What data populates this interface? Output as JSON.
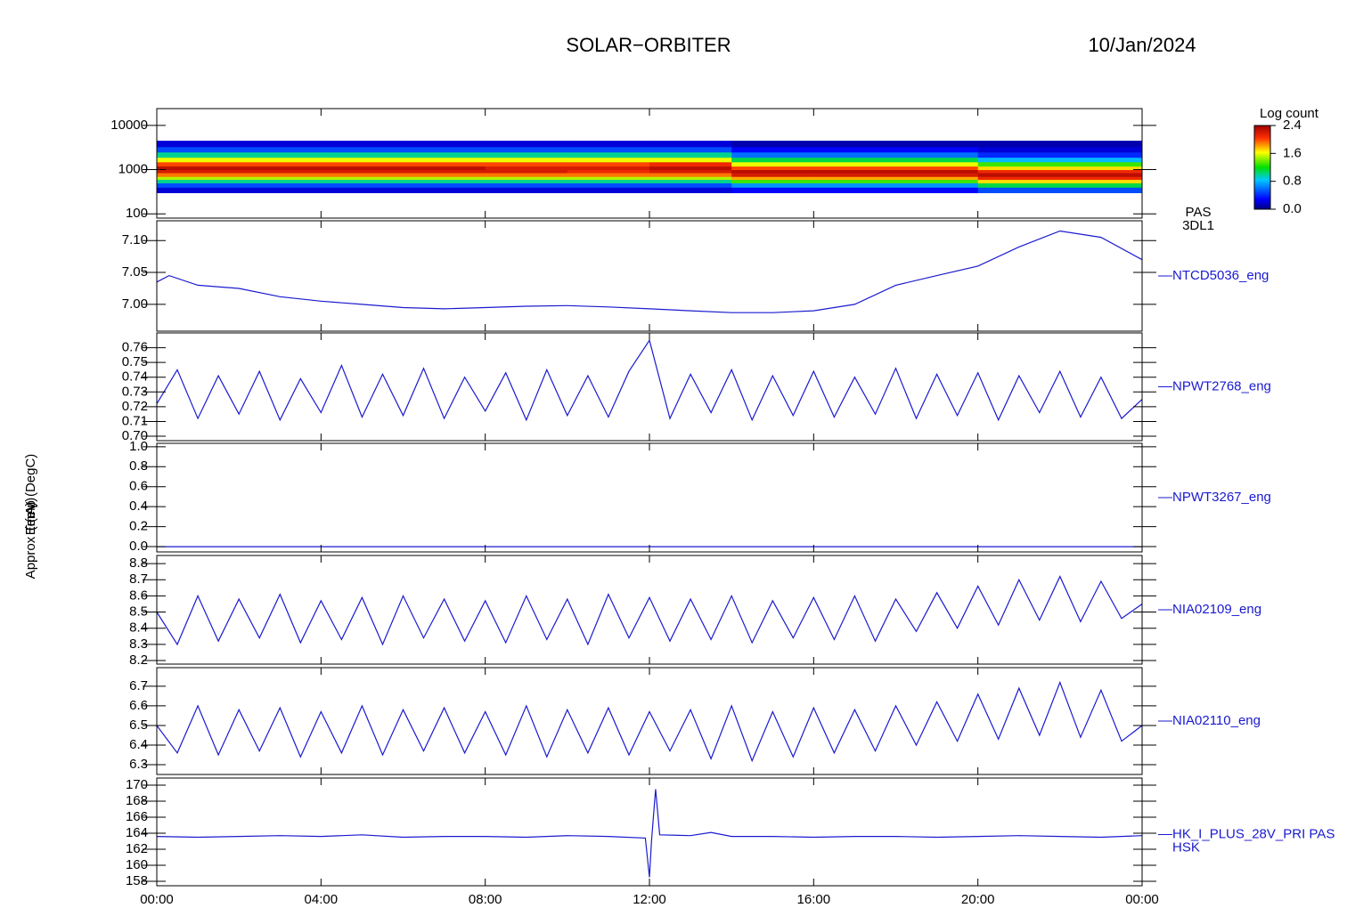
{
  "header": {
    "title": "SOLAR−ORBITER",
    "date": "10/Jan/2024"
  },
  "chart_data": [
    {
      "type": "heatmap",
      "ylabel": "E (eV)",
      "log": true,
      "x": [
        0,
        2,
        4,
        6,
        8,
        10,
        12,
        14,
        16,
        18,
        20,
        22,
        24
      ],
      "y": [
        300,
        400,
        500,
        600,
        700,
        850,
        1000,
        1200,
        1500,
        1900,
        2500,
        3300,
        4500
      ],
      "z": [
        [
          0.2,
          0.5,
          1.0,
          1.5,
          1.9,
          2.2,
          2.3,
          2.0,
          1.6,
          1.0,
          0.5,
          0.2
        ],
        [
          0.2,
          0.5,
          1.0,
          1.5,
          1.9,
          2.2,
          2.3,
          2.0,
          1.6,
          1.0,
          0.5,
          0.2
        ],
        [
          0.2,
          0.5,
          1.0,
          1.5,
          1.9,
          2.2,
          2.3,
          2.0,
          1.6,
          1.0,
          0.5,
          0.2
        ],
        [
          0.2,
          0.5,
          1.0,
          1.5,
          1.9,
          2.2,
          2.3,
          2.0,
          1.6,
          1.0,
          0.5,
          0.2
        ],
        [
          0.2,
          0.5,
          1.0,
          1.5,
          1.9,
          2.2,
          2.2,
          2.0,
          1.6,
          1.0,
          0.5,
          0.2
        ],
        [
          0.2,
          0.5,
          1.0,
          1.5,
          1.9,
          2.1,
          2.2,
          2.0,
          1.6,
          1.0,
          0.5,
          0.2
        ],
        [
          0.2,
          0.5,
          1.0,
          1.5,
          1.9,
          2.2,
          2.3,
          2.1,
          1.6,
          1.0,
          0.5,
          0.2
        ],
        [
          0.3,
          0.7,
          1.3,
          1.8,
          2.2,
          2.3,
          2.0,
          1.6,
          1.1,
          0.6,
          0.3,
          0.1
        ],
        [
          0.3,
          0.7,
          1.3,
          1.8,
          2.2,
          2.3,
          2.0,
          1.6,
          1.1,
          0.6,
          0.3,
          0.1
        ],
        [
          0.3,
          0.7,
          1.3,
          1.8,
          2.2,
          2.3,
          2.0,
          1.6,
          1.1,
          0.6,
          0.3,
          0.1
        ],
        [
          0.5,
          1.1,
          1.7,
          2.1,
          2.3,
          2.1,
          1.7,
          1.3,
          0.8,
          0.4,
          0.2,
          0.1
        ],
        [
          0.5,
          1.1,
          1.7,
          2.1,
          2.3,
          2.1,
          1.7,
          1.3,
          0.8,
          0.4,
          0.2,
          0.1
        ]
      ],
      "xlim": [
        0,
        24
      ],
      "ylim": [
        80,
        24000
      ],
      "yticks": [
        100,
        1000,
        10000
      ],
      "zlabel": "Log count",
      "zlim": [
        0,
        2.4
      ],
      "zticks": [
        {
          "value": 0,
          "label": "0.0"
        },
        {
          "value": 0.8,
          "label": "0.8"
        },
        {
          "value": 1.6,
          "label": "1.6"
        },
        {
          "value": 2.4,
          "label": "2.4"
        }
      ],
      "annotations": [
        "PAS",
        "3DL1"
      ]
    },
    {
      "type": "line",
      "ylabel": "Approx Temp (DegC)",
      "color": "#1a1ad0",
      "x": [
        0,
        0.3,
        1,
        2,
        3,
        4,
        5,
        6,
        7,
        8,
        9,
        10,
        11,
        12,
        13,
        14,
        15,
        16,
        17,
        18,
        19,
        20,
        21,
        22,
        23,
        24
      ],
      "values": [
        7.035,
        7.045,
        7.03,
        7.025,
        7.012,
        7.005,
        7.0,
        6.995,
        6.993,
        6.995,
        6.997,
        6.998,
        6.996,
        6.993,
        6.99,
        6.987,
        6.987,
        6.99,
        7.0,
        7.03,
        7.045,
        7.06,
        7.09,
        7.115,
        7.105,
        7.07
      ],
      "xlim": [
        0,
        24
      ],
      "ylim": [
        6.958,
        7.131
      ],
      "yticks": [
        {
          "value": 7.0,
          "label": "7.00"
        },
        {
          "value": 7.05,
          "label": "7.05"
        },
        {
          "value": 7.1,
          "label": "7.10"
        }
      ],
      "annotations": [
        "NTCD5036_eng"
      ]
    },
    {
      "type": "line",
      "color": "#1a1ad0",
      "x": [
        0,
        0.5,
        1,
        1.5,
        2,
        2.5,
        3,
        3.5,
        4,
        4.5,
        5,
        5.5,
        6,
        6.5,
        7,
        7.5,
        8,
        8.5,
        9,
        9.5,
        10,
        10.5,
        11,
        11.5,
        12,
        12.5,
        13,
        13.5,
        14,
        14.5,
        15,
        15.5,
        16,
        16.5,
        17,
        17.5,
        18,
        18.5,
        19,
        19.5,
        20,
        20.5,
        21,
        21.5,
        22,
        22.5,
        23,
        23.5,
        24
      ],
      "values": [
        0.722,
        0.745,
        0.712,
        0.741,
        0.715,
        0.744,
        0.711,
        0.739,
        0.716,
        0.748,
        0.713,
        0.742,
        0.714,
        0.746,
        0.712,
        0.74,
        0.717,
        0.743,
        0.711,
        0.745,
        0.714,
        0.741,
        0.713,
        0.744,
        0.765,
        0.712,
        0.742,
        0.716,
        0.745,
        0.711,
        0.741,
        0.714,
        0.744,
        0.713,
        0.74,
        0.715,
        0.746,
        0.712,
        0.742,
        0.714,
        0.743,
        0.711,
        0.741,
        0.716,
        0.744,
        0.713,
        0.74,
        0.712,
        0.725
      ],
      "xlim": [
        0,
        24
      ],
      "ylim": [
        0.697,
        0.77
      ],
      "yticks": [
        {
          "value": 0.7,
          "label": "0.70"
        },
        {
          "value": 0.71,
          "label": "0.71"
        },
        {
          "value": 0.72,
          "label": "0.72"
        },
        {
          "value": 0.73,
          "label": "0.73"
        },
        {
          "value": 0.74,
          "label": "0.74"
        },
        {
          "value": 0.75,
          "label": "0.75"
        },
        {
          "value": 0.76,
          "label": "0.76"
        }
      ],
      "annotations": [
        "NPWT2768_eng"
      ]
    },
    {
      "type": "line",
      "color": "#1a1ad0",
      "x": [
        0,
        24
      ],
      "values": [
        0,
        0
      ],
      "xlim": [
        0,
        24
      ],
      "ylim": [
        -0.053,
        1.034
      ],
      "yticks": [
        {
          "value": 0,
          "label": "0.0"
        },
        {
          "value": 0.2,
          "label": "0.2"
        },
        {
          "value": 0.4,
          "label": "0.4"
        },
        {
          "value": 0.6,
          "label": "0.6"
        },
        {
          "value": 0.8,
          "label": "0.8"
        },
        {
          "value": 1,
          "label": "1.0"
        }
      ],
      "annotations": [
        "NPWT3267_eng"
      ]
    },
    {
      "type": "line",
      "color": "#1a1ad0",
      "x": [
        0,
        0.5,
        1,
        1.5,
        2,
        2.5,
        3,
        3.5,
        4,
        4.5,
        5,
        5.5,
        6,
        6.5,
        7,
        7.5,
        8,
        8.5,
        9,
        9.5,
        10,
        10.5,
        11,
        11.5,
        12,
        12.5,
        13,
        13.5,
        14,
        14.5,
        15,
        15.5,
        16,
        16.5,
        17,
        17.5,
        18,
        18.5,
        19,
        19.5,
        20,
        20.5,
        21,
        21.5,
        22,
        22.5,
        23,
        23.5,
        24
      ],
      "values": [
        8.5,
        8.3,
        8.6,
        8.32,
        8.58,
        8.34,
        8.61,
        8.31,
        8.57,
        8.33,
        8.59,
        8.3,
        8.6,
        8.34,
        8.58,
        8.32,
        8.57,
        8.31,
        8.6,
        8.33,
        8.58,
        8.3,
        8.61,
        8.34,
        8.59,
        8.32,
        8.58,
        8.33,
        8.6,
        8.31,
        8.57,
        8.34,
        8.59,
        8.33,
        8.6,
        8.32,
        8.58,
        8.38,
        8.62,
        8.4,
        8.66,
        8.42,
        8.7,
        8.45,
        8.72,
        8.44,
        8.69,
        8.46,
        8.55
      ],
      "xlim": [
        0,
        24
      ],
      "ylim": [
        8.178,
        8.85
      ],
      "yticks": [
        8.2,
        8.3,
        8.4,
        8.5,
        8.6,
        8.7,
        8.8
      ],
      "annotations": [
        "NIA02109_eng"
      ]
    },
    {
      "type": "line",
      "color": "#1a1ad0",
      "x": [
        0,
        0.5,
        1,
        1.5,
        2,
        2.5,
        3,
        3.5,
        4,
        4.5,
        5,
        5.5,
        6,
        6.5,
        7,
        7.5,
        8,
        8.5,
        9,
        9.5,
        10,
        10.5,
        11,
        11.5,
        12,
        12.5,
        13,
        13.5,
        14,
        14.5,
        15,
        15.5,
        16,
        16.5,
        17,
        17.5,
        18,
        18.5,
        19,
        19.5,
        20,
        20.5,
        21,
        21.5,
        22,
        22.5,
        23,
        23.5,
        24
      ],
      "values": [
        6.5,
        6.36,
        6.6,
        6.35,
        6.58,
        6.37,
        6.59,
        6.34,
        6.57,
        6.36,
        6.6,
        6.35,
        6.58,
        6.37,
        6.59,
        6.36,
        6.57,
        6.35,
        6.6,
        6.34,
        6.58,
        6.36,
        6.59,
        6.35,
        6.57,
        6.37,
        6.58,
        6.33,
        6.6,
        6.32,
        6.57,
        6.34,
        6.59,
        6.36,
        6.58,
        6.37,
        6.6,
        6.4,
        6.62,
        6.42,
        6.66,
        6.43,
        6.69,
        6.45,
        6.72,
        6.44,
        6.68,
        6.42,
        6.5
      ],
      "xlim": [
        0,
        24
      ],
      "ylim": [
        6.25,
        6.795
      ],
      "yticks": [
        6.3,
        6.4,
        6.5,
        6.6,
        6.7
      ],
      "annotations": [
        "NIA02110_eng"
      ]
    },
    {
      "type": "line",
      "ylabel": "(mA)",
      "color": "#1a1ad0",
      "x": [
        0,
        1,
        2,
        3,
        4,
        5,
        6,
        7,
        8,
        9,
        10,
        11,
        11.9,
        12.0,
        12.05,
        12.15,
        12.25,
        13,
        13.5,
        14,
        15,
        16,
        17,
        18,
        19,
        20,
        21,
        22,
        23,
        24
      ],
      "values": [
        163.6,
        163.5,
        163.6,
        163.7,
        163.6,
        163.8,
        163.5,
        163.6,
        163.6,
        163.5,
        163.7,
        163.6,
        163.4,
        158.5,
        163.0,
        169.5,
        163.8,
        163.7,
        164.1,
        163.6,
        163.6,
        163.5,
        163.6,
        163.6,
        163.5,
        163.6,
        163.7,
        163.6,
        163.5,
        163.7
      ],
      "xlim": [
        0,
        24
      ],
      "ylim": [
        157.44,
        170.89
      ],
      "yticks": [
        158,
        160,
        162,
        164,
        166,
        168,
        170
      ],
      "xticks": [
        {
          "value": 0,
          "label": "00:00"
        },
        {
          "value": 4,
          "label": "04:00"
        },
        {
          "value": 8,
          "label": "08:00"
        },
        {
          "value": 12,
          "label": "12:00"
        },
        {
          "value": 16,
          "label": "16:00"
        },
        {
          "value": 20,
          "label": "20:00"
        },
        {
          "value": 24,
          "label": "00:00"
        }
      ],
      "annotations": [
        "HK_I_PLUS_28V_PRI PAS",
        "HSK"
      ]
    }
  ]
}
